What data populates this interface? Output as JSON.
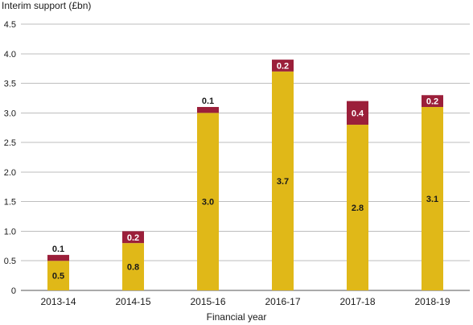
{
  "chart_data": {
    "type": "bar",
    "stacked": true,
    "title": "",
    "ylabel": "Interim support (£bn)",
    "xlabel": "Financial year",
    "categories": [
      "2013-14",
      "2014-15",
      "2015-16",
      "2016-17",
      "2017-18",
      "2018-19"
    ],
    "ylim": [
      0,
      4.5
    ],
    "yticks": [
      "0",
      "0.5",
      "1.0",
      "1.5",
      "2.0",
      "2.5",
      "3.0",
      "3.5",
      "4.0",
      "4.5"
    ],
    "grid": true,
    "series": [
      {
        "values": [
          0.5,
          0.8,
          3.0,
          3.7,
          2.8,
          3.1
        ],
        "labels": [
          "0.5",
          "0.8",
          "3.0",
          "3.7",
          "2.8",
          "3.1"
        ],
        "color": "#e0b818"
      },
      {
        "values": [
          0.1,
          0.2,
          0.1,
          0.2,
          0.4,
          0.2
        ],
        "labels": [
          "0.1",
          "0.2",
          "0.1",
          "0.2",
          "0.4",
          "0.2"
        ],
        "color": "#9b1f3a"
      }
    ]
  }
}
